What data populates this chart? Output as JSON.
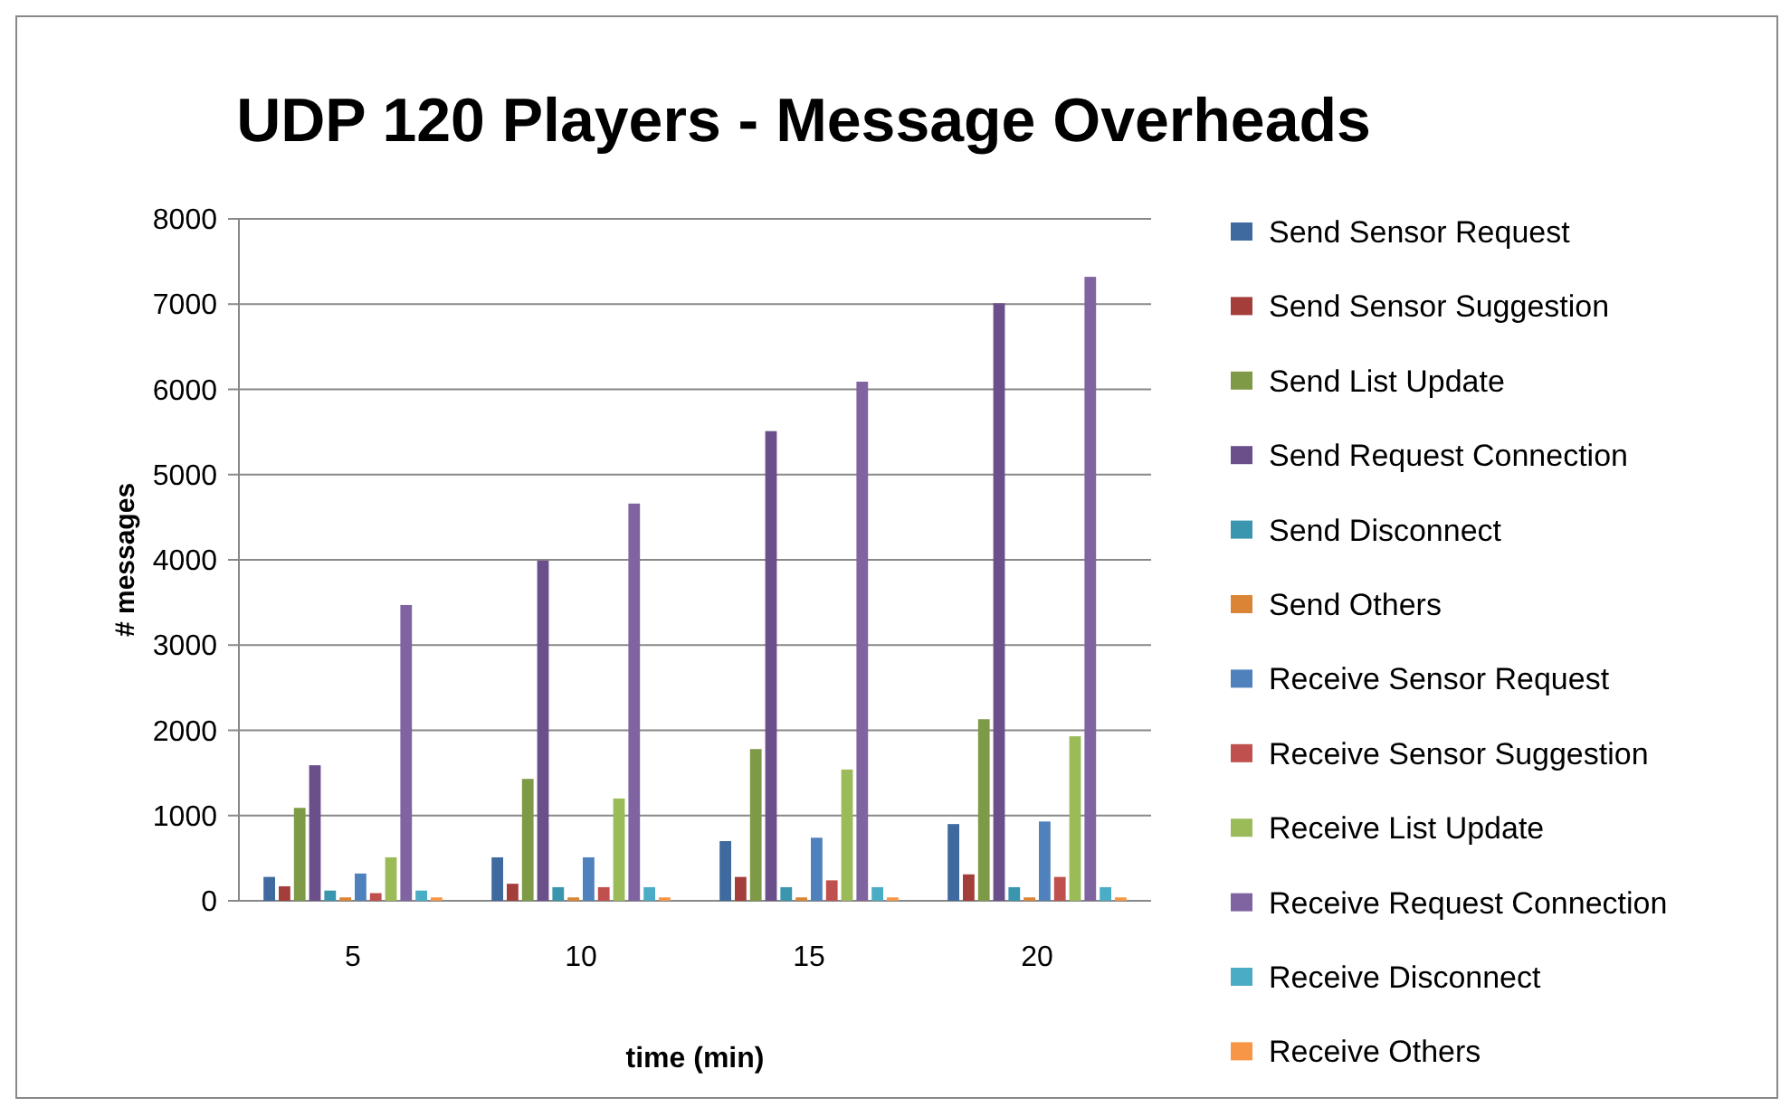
{
  "chart_data": {
    "type": "bar",
    "title": "UDP 120 Players - Message Overheads",
    "xlabel": "time (min)",
    "ylabel": "# messages",
    "categories": [
      "5",
      "10",
      "15",
      "20"
    ],
    "series": [
      {
        "name": "Send Sensor Request",
        "color": "#3e6aa0",
        "values": [
          280,
          510,
          700,
          900
        ]
      },
      {
        "name": "Send Sensor Suggestion",
        "color": "#a33e3b",
        "values": [
          170,
          200,
          280,
          310
        ]
      },
      {
        "name": "Send List Update",
        "color": "#7e9a46",
        "values": [
          1090,
          1430,
          1780,
          2130
        ]
      },
      {
        "name": "Send Request Connection",
        "color": "#6a4f8a",
        "values": [
          1590,
          3990,
          5510,
          7010
        ]
      },
      {
        "name": "Send Disconnect",
        "color": "#3a95ae",
        "values": [
          120,
          160,
          160,
          160
        ]
      },
      {
        "name": "Send Others",
        "color": "#d98535",
        "values": [
          40,
          40,
          40,
          40
        ]
      },
      {
        "name": "Receive Sensor Request",
        "color": "#4f81bd",
        "values": [
          320,
          510,
          740,
          930
        ]
      },
      {
        "name": "Receive Sensor Suggestion",
        "color": "#c0504d",
        "values": [
          90,
          160,
          240,
          280
        ]
      },
      {
        "name": "Receive List Update",
        "color": "#9bbb59",
        "values": [
          510,
          1200,
          1540,
          1930
        ]
      },
      {
        "name": "Receive Request Connection",
        "color": "#8064a2",
        "values": [
          3470,
          4660,
          6090,
          7320
        ]
      },
      {
        "name": "Receive Disconnect",
        "color": "#4bacc6",
        "values": [
          120,
          160,
          160,
          160
        ]
      },
      {
        "name": "Receive Others",
        "color": "#f79646",
        "values": [
          40,
          40,
          40,
          40
        ]
      }
    ],
    "ylim": [
      0,
      8000
    ],
    "yticks": [
      0,
      1000,
      2000,
      3000,
      4000,
      5000,
      6000,
      7000,
      8000
    ],
    "grid": "y",
    "legend": "right"
  }
}
